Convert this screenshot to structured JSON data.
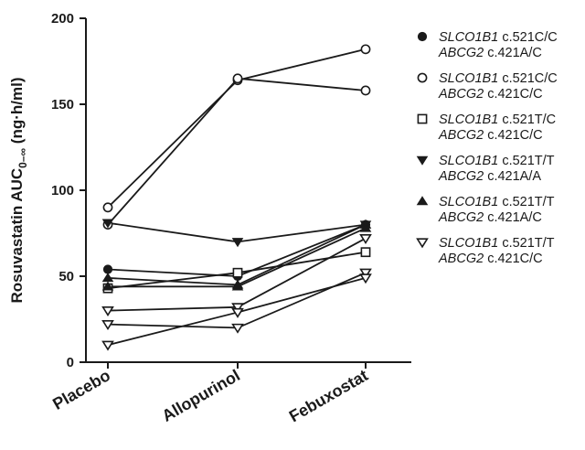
{
  "chart_data": {
    "type": "line",
    "categories": [
      "Placebo",
      "Allopurinol",
      "Febuxostat"
    ],
    "ylabel_main": "Rosuvastatin AUC",
    "ylabel_sub": "0–∞",
    "ylabel_unit": " (ng·h/ml)",
    "ylim": [
      0,
      200
    ],
    "yticks": [
      "0",
      "50",
      "100",
      "150",
      "200"
    ],
    "grid": false,
    "legend_position": "right",
    "legend": [
      {
        "marker": "circle-filled",
        "gene1": "SLCO1B1",
        "var1": " c.521C/C",
        "gene2": "ABCG2",
        "var2": " c.421A/C"
      },
      {
        "marker": "circle-open",
        "gene1": "SLCO1B1",
        "var1": " c.521C/C",
        "gene2": "ABCG2",
        "var2": " c.421C/C"
      },
      {
        "marker": "square-open",
        "gene1": "SLCO1B1",
        "var1": " c.521T/C",
        "gene2": "ABCG2",
        "var2": " c.421C/C"
      },
      {
        "marker": "triangle-down-filled",
        "gene1": "SLCO1B1",
        "var1": " c.521T/T",
        "gene2": "ABCG2",
        "var2": " c.421A/A"
      },
      {
        "marker": "triangle-up-filled",
        "gene1": "SLCO1B1",
        "var1": " c.521T/T",
        "gene2": "ABCG2",
        "var2": " c.421A/C"
      },
      {
        "marker": "triangle-down-open",
        "gene1": "SLCO1B1",
        "var1": " c.521T/T",
        "gene2": "ABCG2",
        "var2": " c.421C/C"
      }
    ],
    "series": [
      {
        "marker": "circle-open",
        "values": [
          90,
          164,
          182
        ]
      },
      {
        "marker": "circle-open",
        "values": [
          80,
          165,
          158
        ]
      },
      {
        "marker": "triangle-down-filled",
        "values": [
          81,
          70,
          80
        ]
      },
      {
        "marker": "circle-filled",
        "values": [
          54,
          50,
          80
        ]
      },
      {
        "marker": "triangle-up-filled",
        "values": [
          49,
          45,
          80
        ]
      },
      {
        "marker": "square-open",
        "values": [
          43,
          52,
          64
        ]
      },
      {
        "marker": "triangle-up-filled",
        "values": [
          44,
          44,
          78
        ]
      },
      {
        "marker": "triangle-down-open",
        "values": [
          30,
          32,
          72
        ]
      },
      {
        "marker": "triangle-down-open",
        "values": [
          22,
          20,
          52
        ]
      },
      {
        "marker": "triangle-down-open",
        "values": [
          10,
          29,
          49
        ]
      }
    ],
    "colors": {
      "ink": "#1a1a1a",
      "background": "#ffffff"
    }
  }
}
